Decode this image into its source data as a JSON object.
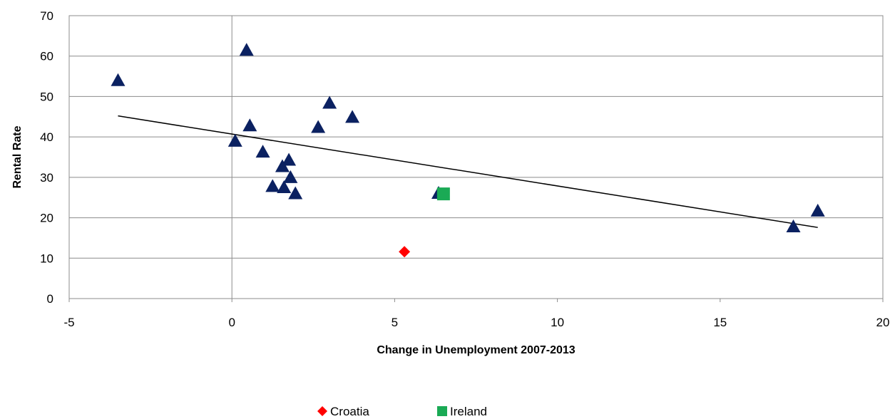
{
  "chart_data": {
    "type": "scatter",
    "xlabel": "Change in Unemployment 2007-2013",
    "ylabel": "Rental Rate",
    "xlim": [
      -5,
      20
    ],
    "ylim": [
      0,
      70
    ],
    "x_ticks": [
      "-5",
      "0",
      "5",
      "10",
      "15",
      "20"
    ],
    "y_ticks": [
      "0",
      "10",
      "20",
      "30",
      "40",
      "50",
      "60",
      "70"
    ],
    "grid": "horizontal",
    "legend_position": "bottom",
    "series": [
      {
        "marker": "triangle",
        "color": "#0b2161",
        "points": [
          [
            -3.5,
            54.0
          ],
          [
            0.45,
            61.5
          ],
          [
            0.55,
            42.8
          ],
          [
            0.1,
            39.0
          ],
          [
            0.95,
            36.3
          ],
          [
            1.55,
            32.7
          ],
          [
            1.75,
            34.3
          ],
          [
            1.8,
            30.0
          ],
          [
            1.25,
            27.8
          ],
          [
            1.6,
            27.5
          ],
          [
            1.95,
            26.0
          ],
          [
            2.65,
            42.4
          ],
          [
            3.0,
            48.4
          ],
          [
            3.7,
            44.9
          ],
          [
            6.35,
            26.1
          ],
          [
            17.25,
            17.8
          ],
          [
            18.0,
            21.7
          ]
        ]
      },
      {
        "name": "Croatia",
        "marker": "diamond",
        "color": "#ff0000",
        "points": [
          [
            5.3,
            11.6
          ]
        ]
      },
      {
        "name": "Ireland",
        "marker": "square",
        "color": "#1aaa55",
        "points": [
          [
            6.5,
            25.9
          ]
        ]
      }
    ],
    "trendline": {
      "color": "#000000",
      "points": [
        [
          -3.5,
          45.2
        ],
        [
          18.0,
          17.6
        ]
      ]
    }
  }
}
